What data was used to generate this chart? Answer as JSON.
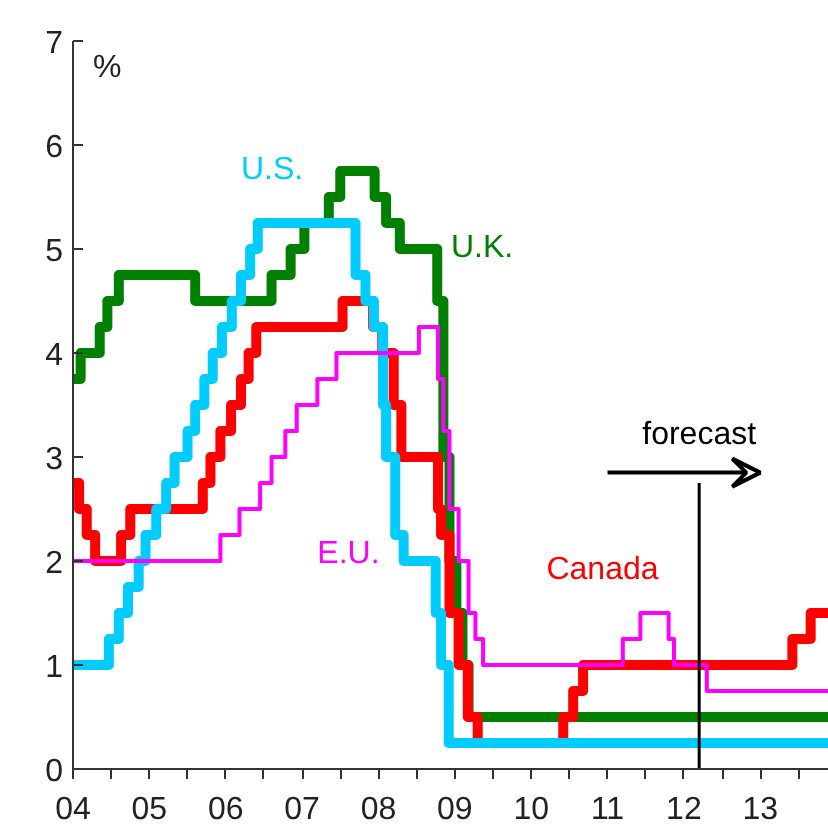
{
  "chart_data": {
    "type": "step",
    "ylabel": "%",
    "grid": false,
    "xlim": [
      2004,
      2013.9
    ],
    "ylim": [
      0,
      7
    ],
    "xticks": [
      {
        "value": 2004,
        "label": "04"
      },
      {
        "value": 2004.5,
        "label": null
      },
      {
        "value": 2005,
        "label": "05"
      },
      {
        "value": 2005.5,
        "label": null
      },
      {
        "value": 2006,
        "label": "06"
      },
      {
        "value": 2006.5,
        "label": null
      },
      {
        "value": 2007,
        "label": "07"
      },
      {
        "value": 2007.5,
        "label": null
      },
      {
        "value": 2008,
        "label": "08"
      },
      {
        "value": 2008.5,
        "label": null
      },
      {
        "value": 2009,
        "label": "09"
      },
      {
        "value": 2009.5,
        "label": null
      },
      {
        "value": 2010,
        "label": "10"
      },
      {
        "value": 2010.5,
        "label": null
      },
      {
        "value": 2011,
        "label": "11"
      },
      {
        "value": 2011.5,
        "label": null
      },
      {
        "value": 2012,
        "label": "12"
      },
      {
        "value": 2012.5,
        "label": null
      },
      {
        "value": 2013,
        "label": "13"
      },
      {
        "value": 2013.5,
        "label": null
      }
    ],
    "yticks": [
      0,
      1,
      2,
      3,
      4,
      5,
      6,
      7
    ],
    "series": [
      {
        "name": "U.K.",
        "color": "#008000",
        "x": [
          2004,
          2004.1,
          2004.35,
          2004.45,
          2004.6,
          2005.6,
          2006.6,
          2006.85,
          2007.03,
          2007.35,
          2007.5,
          2007.95,
          2008.1,
          2008.28,
          2008.77,
          2008.85,
          2008.93,
          2009.02,
          2009.1,
          2009.18,
          2013.9
        ],
        "values": [
          3.75,
          4.0,
          4.25,
          4.5,
          4.75,
          4.5,
          4.75,
          5.0,
          5.25,
          5.5,
          5.75,
          5.5,
          5.25,
          5.0,
          4.5,
          3.0,
          2.0,
          1.5,
          1.0,
          0.5,
          0.5
        ]
      },
      {
        "name": "Canada",
        "color": "#ff0000",
        "x": [
          2004,
          2004.08,
          2004.18,
          2004.29,
          2004.63,
          2004.75,
          2005.7,
          2005.8,
          2005.93,
          2006.07,
          2006.2,
          2006.3,
          2006.4,
          2007.53,
          2007.93,
          2008.05,
          2008.2,
          2008.3,
          2008.78,
          2008.82,
          2008.93,
          2009.05,
          2009.17,
          2009.3,
          2010.42,
          2010.55,
          2010.68,
          2013.42,
          2013.66,
          2013.9
        ],
        "values": [
          2.75,
          2.5,
          2.25,
          2.0,
          2.25,
          2.5,
          2.75,
          3.0,
          3.25,
          3.5,
          3.75,
          4.0,
          4.25,
          4.5,
          4.25,
          4.0,
          3.5,
          3.0,
          2.5,
          2.25,
          1.5,
          1.0,
          0.5,
          0.25,
          0.5,
          0.75,
          1.0,
          1.25,
          1.5,
          1.5
        ]
      },
      {
        "name": "U.S.",
        "color": "#00ccff",
        "x": [
          2004,
          2004.47,
          2004.6,
          2004.72,
          2004.86,
          2004.95,
          2005.09,
          2005.22,
          2005.33,
          2005.5,
          2005.6,
          2005.72,
          2005.83,
          2005.95,
          2006.08,
          2006.2,
          2006.32,
          2006.42,
          2007.7,
          2007.83,
          2007.94,
          2008.06,
          2008.1,
          2008.22,
          2008.33,
          2008.75,
          2008.82,
          2008.92,
          2013.9
        ],
        "values": [
          1.0,
          1.25,
          1.5,
          1.75,
          2.0,
          2.25,
          2.5,
          2.75,
          3.0,
          3.25,
          3.5,
          3.75,
          4.0,
          4.25,
          4.5,
          4.75,
          5.0,
          5.25,
          4.75,
          4.5,
          4.25,
          3.5,
          3.0,
          2.25,
          2.0,
          1.5,
          1.0,
          0.25,
          0.25
        ]
      },
      {
        "name": "E.U.",
        "color": "#ff00ff",
        "x": [
          2004,
          2005.93,
          2006.18,
          2006.45,
          2006.6,
          2006.78,
          2006.93,
          2007.2,
          2007.45,
          2008.53,
          2008.78,
          2008.85,
          2008.93,
          2009.05,
          2009.18,
          2009.27,
          2009.37,
          2011.2,
          2011.43,
          2011.8,
          2011.87,
          2012.3,
          2013.9
        ],
        "values": [
          2.0,
          2.25,
          2.5,
          2.75,
          3.0,
          3.25,
          3.5,
          3.75,
          4.0,
          4.25,
          3.75,
          3.25,
          2.5,
          2.0,
          1.5,
          1.25,
          1.0,
          1.25,
          1.5,
          1.25,
          1.0,
          0.75,
          0.75
        ]
      }
    ],
    "ref_lines": [
      {
        "axis": "x",
        "value": 2012.2,
        "label": "forecast",
        "color": "#000000"
      }
    ]
  }
}
